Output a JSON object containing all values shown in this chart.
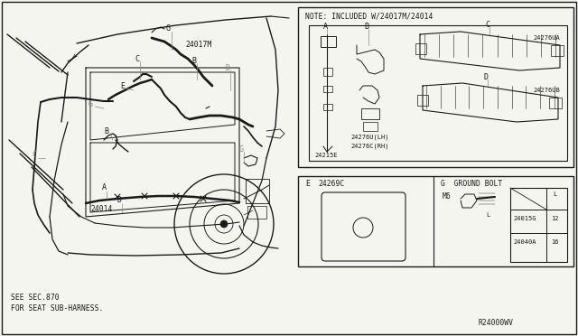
{
  "bg_color": "#f5f5f0",
  "line_color": "#1a1a1a",
  "fig_width": 6.4,
  "fig_height": 3.72,
  "dpi": 100,
  "note_text": "NOTE: INCLUDED W/24017M/24014",
  "bottom_left_text1": "SEE SEC.870",
  "bottom_left_text2": "FOR SEAT SUB-HARNESS.",
  "ref_code": "R24000WV",
  "fs_small": 5.8,
  "fs_tiny": 5.0,
  "fs_med": 6.5,
  "fs_label": 6.0
}
